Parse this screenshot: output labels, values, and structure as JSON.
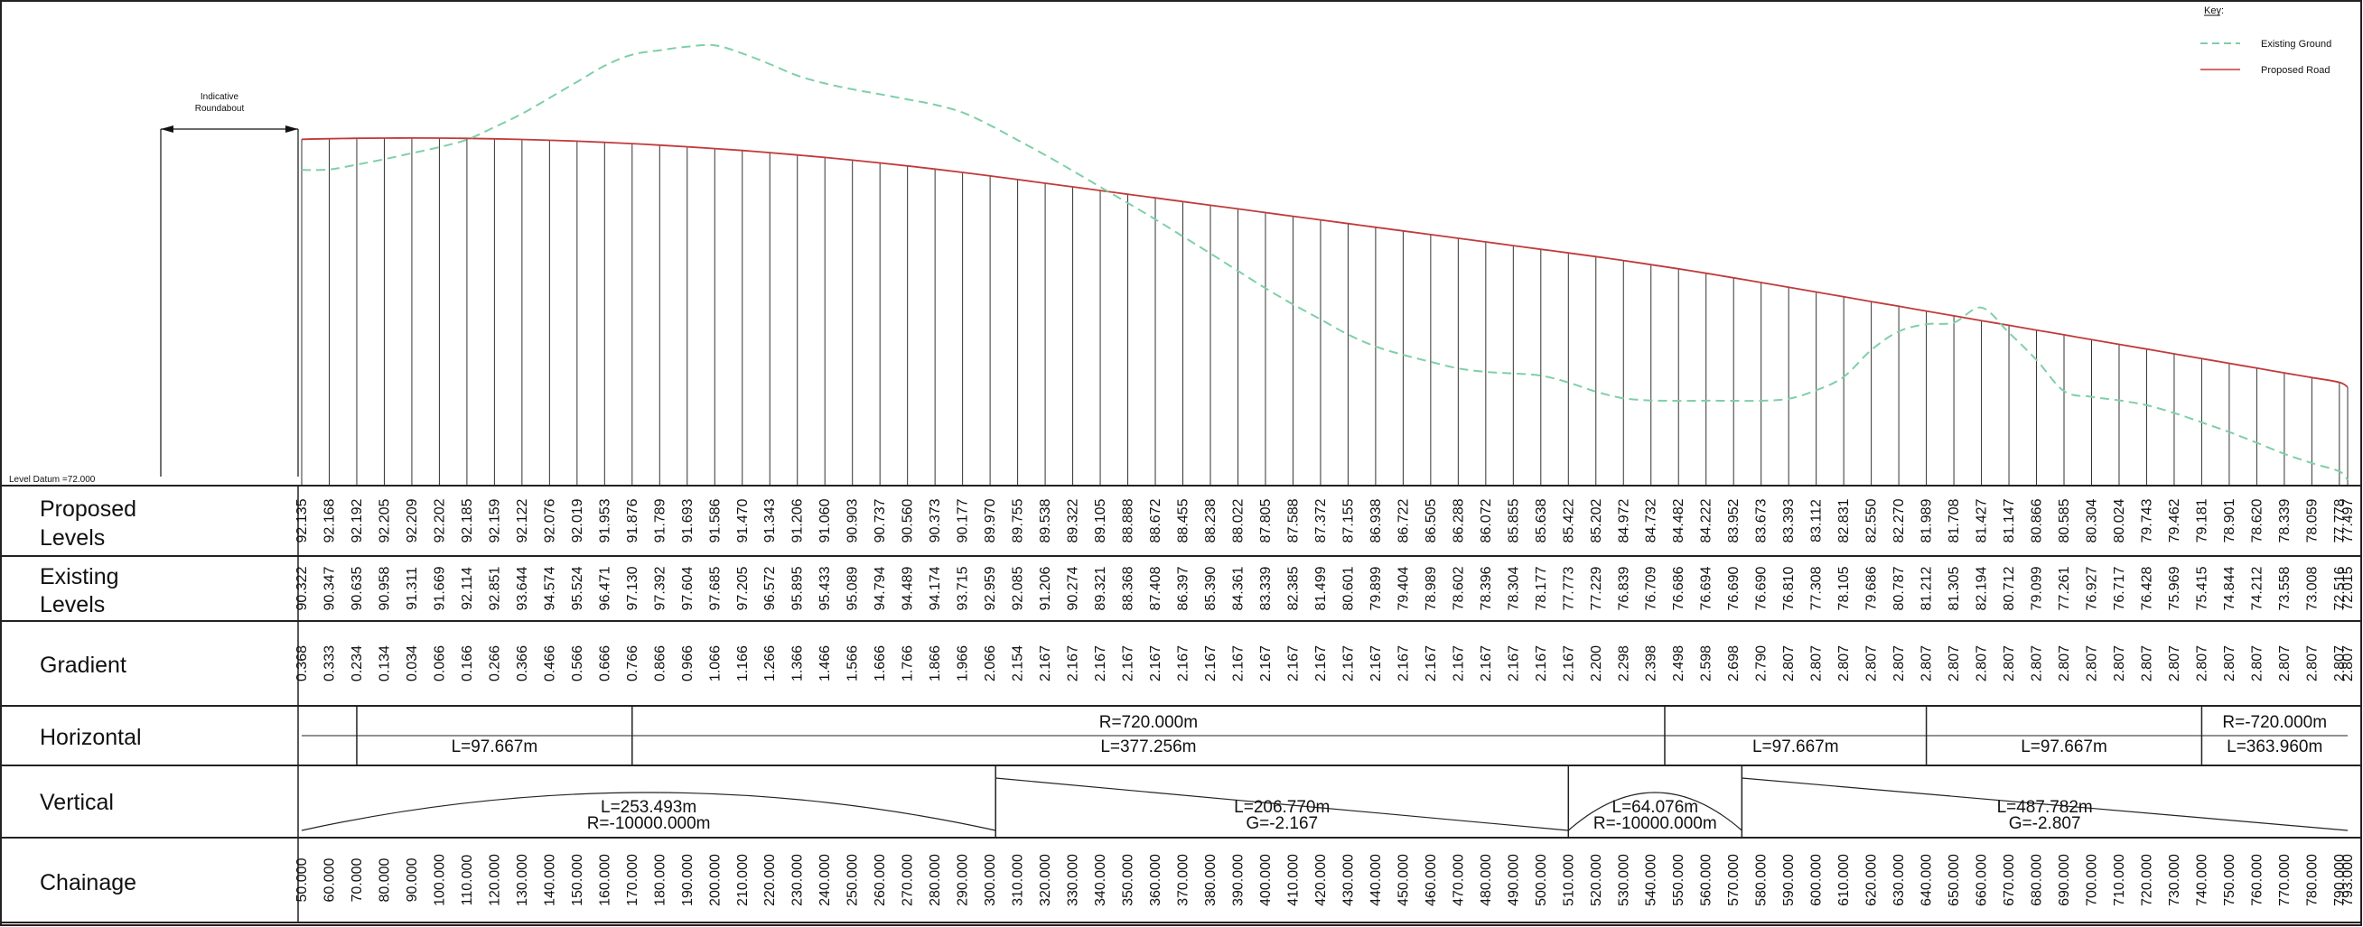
{
  "key": {
    "title": "Key:",
    "existing_label": "Existing Ground",
    "proposed_label": "Proposed Road",
    "existing_color": "#7fcfa8",
    "proposed_color": "#c23a3a"
  },
  "annotations": {
    "roundabout_line1": "Indicative",
    "roundabout_line2": "Roundabout",
    "level_datum": "Level Datum =72.000"
  },
  "datum": 72.0,
  "row_labels": {
    "proposed_1": "Proposed",
    "proposed_2": "Levels",
    "existing_1": "Existing",
    "existing_2": "Levels",
    "gradient": "Gradient",
    "horizontal": "Horizontal",
    "vertical": "Vertical",
    "chainage": "Chainage"
  },
  "stations": {
    "chainage": [
      "50.000",
      "60.000",
      "70.000",
      "80.000",
      "90.000",
      "100.000",
      "110.000",
      "120.000",
      "130.000",
      "140.000",
      "150.000",
      "160.000",
      "170.000",
      "180.000",
      "190.000",
      "200.000",
      "210.000",
      "220.000",
      "230.000",
      "240.000",
      "250.000",
      "260.000",
      "270.000",
      "280.000",
      "290.000",
      "300.000",
      "310.000",
      "320.000",
      "330.000",
      "340.000",
      "350.000",
      "360.000",
      "370.000",
      "380.000",
      "390.000",
      "400.000",
      "410.000",
      "420.000",
      "430.000",
      "440.000",
      "450.000",
      "460.000",
      "470.000",
      "480.000",
      "490.000",
      "500.000",
      "510.000",
      "520.000",
      "530.000",
      "540.000",
      "550.000",
      "560.000",
      "570.000",
      "580.000",
      "590.000",
      "600.000",
      "610.000",
      "620.000",
      "630.000",
      "640.000",
      "650.000",
      "660.000",
      "670.000",
      "680.000",
      "690.000",
      "700.000",
      "710.000",
      "720.000",
      "730.000",
      "740.000",
      "750.000",
      "760.000",
      "770.000",
      "780.000",
      "790.000",
      "793.000"
    ],
    "proposed": [
      "92.135",
      "92.168",
      "92.192",
      "92.205",
      "92.209",
      "92.202",
      "92.185",
      "92.159",
      "92.122",
      "92.076",
      "92.019",
      "91.953",
      "91.876",
      "91.789",
      "91.693",
      "91.586",
      "91.470",
      "91.343",
      "91.206",
      "91.060",
      "90.903",
      "90.737",
      "90.560",
      "90.373",
      "90.177",
      "89.970",
      "89.755",
      "89.538",
      "89.322",
      "89.105",
      "88.888",
      "88.672",
      "88.455",
      "88.238",
      "88.022",
      "87.805",
      "87.588",
      "87.372",
      "87.155",
      "86.938",
      "86.722",
      "86.505",
      "86.288",
      "86.072",
      "85.855",
      "85.638",
      "85.422",
      "85.202",
      "84.972",
      "84.732",
      "84.482",
      "84.222",
      "83.952",
      "83.673",
      "83.393",
      "83.112",
      "82.831",
      "82.550",
      "82.270",
      "81.989",
      "81.708",
      "81.427",
      "81.147",
      "80.866",
      "80.585",
      "80.304",
      "80.024",
      "79.743",
      "79.462",
      "79.181",
      "78.901",
      "78.620",
      "78.339",
      "78.059",
      "77.778",
      "77.497"
    ],
    "existing": [
      "90.322",
      "90.347",
      "90.635",
      "90.958",
      "91.311",
      "91.669",
      "92.114",
      "92.851",
      "93.644",
      "94.574",
      "95.524",
      "96.471",
      "97.130",
      "97.392",
      "97.604",
      "97.685",
      "97.205",
      "96.572",
      "95.895",
      "95.433",
      "95.089",
      "94.794",
      "94.489",
      "94.174",
      "93.715",
      "92.959",
      "92.085",
      "91.206",
      "90.274",
      "89.321",
      "88.368",
      "87.408",
      "86.397",
      "85.390",
      "84.361",
      "83.339",
      "82.385",
      "81.499",
      "80.601",
      "79.899",
      "79.404",
      "78.989",
      "78.602",
      "78.396",
      "78.304",
      "78.177",
      "77.773",
      "77.229",
      "76.839",
      "76.709",
      "76.686",
      "76.694",
      "76.690",
      "76.690",
      "76.810",
      "77.308",
      "78.105",
      "79.686",
      "80.787",
      "81.212",
      "81.305",
      "82.194",
      "80.712",
      "79.099",
      "77.261",
      "76.927",
      "76.717",
      "76.428",
      "75.969",
      "75.415",
      "74.844",
      "74.212",
      "73.558",
      "73.008",
      "72.516",
      "72.015"
    ],
    "gradient": [
      "0.368",
      "0.333",
      "0.234",
      "0.134",
      "0.034",
      "0.066",
      "0.166",
      "0.266",
      "0.366",
      "0.466",
      "0.566",
      "0.666",
      "0.766",
      "0.866",
      "0.966",
      "1.066",
      "1.166",
      "1.266",
      "1.366",
      "1.466",
      "1.566",
      "1.666",
      "1.766",
      "1.866",
      "1.966",
      "2.066",
      "2.154",
      "2.167",
      "2.167",
      "2.167",
      "2.167",
      "2.167",
      "2.167",
      "2.167",
      "2.167",
      "2.167",
      "2.167",
      "2.167",
      "2.167",
      "2.167",
      "2.167",
      "2.167",
      "2.167",
      "2.167",
      "2.167",
      "2.167",
      "2.167",
      "2.200",
      "2.298",
      "2.398",
      "2.498",
      "2.598",
      "2.698",
      "2.790",
      "2.807",
      "2.807",
      "2.807",
      "2.807",
      "2.807",
      "2.807",
      "2.807",
      "2.807",
      "2.807",
      "2.807",
      "2.807",
      "2.807",
      "2.807",
      "2.807",
      "2.807",
      "2.807",
      "2.807",
      "2.807",
      "2.807",
      "2.807",
      "2.807",
      "2.807"
    ]
  },
  "horizontal_segments": [
    {
      "from": 50,
      "to": 70,
      "line1": "",
      "line2": ""
    },
    {
      "from": 70,
      "to": 170,
      "line1": "",
      "line2": "L=97.667m"
    },
    {
      "from": 170,
      "to": 545,
      "line1": "R=720.000m",
      "line2": "L=377.256m"
    },
    {
      "from": 545,
      "to": 640,
      "line1": "",
      "line2": "L=97.667m"
    },
    {
      "from": 640,
      "to": 740,
      "line1": "",
      "line2": "L=97.667m"
    },
    {
      "from": 740,
      "to": 793,
      "line1": "R=-720.000m",
      "line2": "L=363.960m"
    }
  ],
  "vertical_segments": [
    {
      "from": 50,
      "to": 302,
      "shape": "crest",
      "line1": "L=253.493m",
      "line2": "R=-10000.000m"
    },
    {
      "from": 302,
      "to": 510,
      "shape": "grade",
      "line1": "L=206.770m",
      "line2": "G=-2.167"
    },
    {
      "from": 510,
      "to": 573,
      "shape": "crest",
      "line1": "L=64.076m",
      "line2": "R=-10000.000m"
    },
    {
      "from": 573,
      "to": 793,
      "shape": "grade",
      "line1": "L=487.782m",
      "line2": "G=-2.807"
    }
  ]
}
